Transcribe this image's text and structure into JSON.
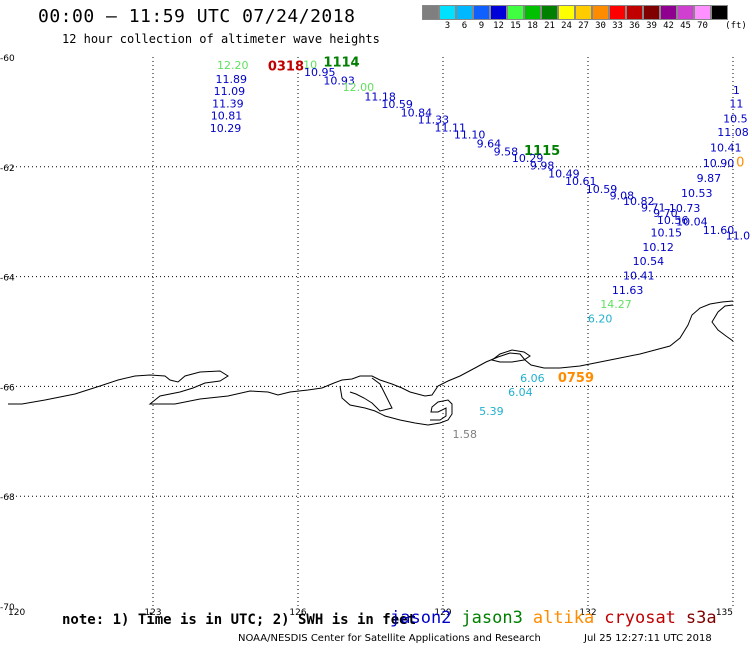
{
  "header": {
    "title": "00:00 – 11:59 UTC 07/24/2018",
    "subtitle": "12 hour collection of altimeter wave heights"
  },
  "legend": {
    "unit": "(ft)",
    "bins": [
      {
        "label": "",
        "color": "#7f7f7f"
      },
      {
        "label": "3",
        "color": "#00e0ff"
      },
      {
        "label": "6",
        "color": "#00b8ff"
      },
      {
        "label": "9",
        "color": "#1060ff"
      },
      {
        "label": "12",
        "color": "#0000d8"
      },
      {
        "label": "15",
        "color": "#40ff40"
      },
      {
        "label": "18",
        "color": "#00c000"
      },
      {
        "label": "21",
        "color": "#008000"
      },
      {
        "label": "24",
        "color": "#ffff00"
      },
      {
        "label": "27",
        "color": "#ffcc00"
      },
      {
        "label": "30",
        "color": "#ff8c00"
      },
      {
        "label": "33",
        "color": "#ff0000"
      },
      {
        "label": "36",
        "color": "#c00000"
      },
      {
        "label": "39",
        "color": "#800000"
      },
      {
        "label": "42",
        "color": "#900090"
      },
      {
        "label": "45",
        "color": "#d040d0"
      },
      {
        "label": "70",
        "color": "#ff90ff"
      },
      {
        "label": "",
        "color": "#000000"
      }
    ]
  },
  "axes": {
    "lon_ticks": [
      {
        "lon": 120,
        "label": "120"
      },
      {
        "lon": 123,
        "label": "123"
      },
      {
        "lon": 126,
        "label": "126"
      },
      {
        "lon": 129,
        "label": "129"
      },
      {
        "lon": 132,
        "label": "132"
      },
      {
        "lon": 135,
        "label": "135"
      }
    ],
    "lat_ticks": [
      {
        "lat": -60,
        "label": "-60"
      },
      {
        "lat": -62,
        "label": "-62"
      },
      {
        "lat": -64,
        "label": "-64"
      },
      {
        "lat": -66,
        "label": "-66"
      },
      {
        "lat": -68,
        "label": "-68"
      },
      {
        "lat": -70,
        "label": "-70"
      }
    ],
    "lon_range": [
      120,
      135
    ],
    "lat_range": [
      -60,
      -70
    ]
  },
  "colors": {
    "jason2": "#0000c8",
    "jason3": "#008000",
    "altika": "#ff8c00",
    "cryosat": "#c00000",
    "s3a": "#800000",
    "light_green": "#60e060",
    "cyan": "#20b0d0",
    "gray": "#808080"
  },
  "annotations": [
    {
      "text": "12.20",
      "lon": 124.65,
      "lat": -60.15,
      "color": "light_green"
    },
    {
      "text": "11.89",
      "lon": 124.62,
      "lat": -60.4,
      "color": "jason2"
    },
    {
      "text": "11.09",
      "lon": 124.58,
      "lat": -60.62,
      "color": "jason2"
    },
    {
      "text": "11.39",
      "lon": 124.55,
      "lat": -60.85,
      "color": "jason2"
    },
    {
      "text": "10.81",
      "lon": 124.52,
      "lat": -61.07,
      "color": "jason2"
    },
    {
      "text": "10.29",
      "lon": 124.5,
      "lat": -61.29,
      "color": "jason2"
    },
    {
      "text": "0318",
      "lon": 125.75,
      "lat": -60.17,
      "color": "cryosat",
      "bold": true,
      "size": 13
    },
    {
      "text": "10",
      "lon": 126.25,
      "lat": -60.14,
      "color": "light_green"
    },
    {
      "text": "1114",
      "lon": 126.9,
      "lat": -60.1,
      "color": "jason3",
      "bold": true,
      "size": 13
    },
    {
      "text": "10.95",
      "lon": 126.45,
      "lat": -60.27,
      "color": "jason2"
    },
    {
      "text": "10.93",
      "lon": 126.85,
      "lat": -60.43,
      "color": "jason2"
    },
    {
      "text": "12.00",
      "lon": 127.25,
      "lat": -60.55,
      "color": "light_green"
    },
    {
      "text": "11.18",
      "lon": 127.7,
      "lat": -60.72,
      "color": "jason2"
    },
    {
      "text": "10.59",
      "lon": 128.05,
      "lat": -60.86,
      "color": "jason2"
    },
    {
      "text": "10.84",
      "lon": 128.45,
      "lat": -61.01,
      "color": "jason2"
    },
    {
      "text": "11.33",
      "lon": 128.8,
      "lat": -61.14,
      "color": "jason2"
    },
    {
      "text": "11.11",
      "lon": 129.15,
      "lat": -61.28,
      "color": "jason2"
    },
    {
      "text": "11.10",
      "lon": 129.55,
      "lat": -61.41,
      "color": "jason2"
    },
    {
      "text": "9.64",
      "lon": 129.95,
      "lat": -61.58,
      "color": "jason2"
    },
    {
      "text": "9.58",
      "lon": 130.3,
      "lat": -61.72,
      "color": "jason2"
    },
    {
      "text": "1115",
      "lon": 131.05,
      "lat": -61.71,
      "color": "jason3",
      "bold": true,
      "size": 13
    },
    {
      "text": "10.29",
      "lon": 130.75,
      "lat": -61.84,
      "color": "jason2"
    },
    {
      "text": "9.98",
      "lon": 131.05,
      "lat": -61.98,
      "color": "jason2"
    },
    {
      "text": "10.49",
      "lon": 131.5,
      "lat": -62.12,
      "color": "jason2"
    },
    {
      "text": "10.61",
      "lon": 131.85,
      "lat": -62.26,
      "color": "jason2"
    },
    {
      "text": "10.59",
      "lon": 132.28,
      "lat": -62.4,
      "color": "jason2"
    },
    {
      "text": "9.08",
      "lon": 132.7,
      "lat": -62.52,
      "color": "jason2"
    },
    {
      "text": "10.82",
      "lon": 133.05,
      "lat": -62.62,
      "color": "jason2"
    },
    {
      "text": "9.71",
      "lon": 133.35,
      "lat": -62.74,
      "color": "jason2"
    },
    {
      "text": "9.70",
      "lon": 133.6,
      "lat": -62.84,
      "color": "jason2"
    },
    {
      "text": "10.56",
      "lon": 133.75,
      "lat": -62.97,
      "color": "jason2"
    },
    {
      "text": "10.15",
      "lon": 133.62,
      "lat": -63.2,
      "color": "jason2"
    },
    {
      "text": "10.12",
      "lon": 133.45,
      "lat": -63.46,
      "color": "jason2"
    },
    {
      "text": "10.54",
      "lon": 133.25,
      "lat": -63.72,
      "color": "jason2"
    },
    {
      "text": "10.41",
      "lon": 133.05,
      "lat": -63.98,
      "color": "jason2"
    },
    {
      "text": "11.63",
      "lon": 132.82,
      "lat": -64.24,
      "color": "jason2"
    },
    {
      "text": "14.27",
      "lon": 132.58,
      "lat": -64.5,
      "color": "light_green"
    },
    {
      "text": "6.20",
      "lon": 132.25,
      "lat": -64.76,
      "color": "cyan"
    },
    {
      "text": "10.73",
      "lon": 134.0,
      "lat": -62.75,
      "color": "jason2"
    },
    {
      "text": "10.53",
      "lon": 134.25,
      "lat": -62.48,
      "color": "jason2"
    },
    {
      "text": "9.87",
      "lon": 134.5,
      "lat": -62.2,
      "color": "jason2"
    },
    {
      "text": "10.90",
      "lon": 134.7,
      "lat": -61.93,
      "color": "jason2"
    },
    {
      "text": "10.41",
      "lon": 134.85,
      "lat": -61.65,
      "color": "jason2"
    },
    {
      "text": "11.08",
      "lon": 135.0,
      "lat": -61.37,
      "color": "jason2"
    },
    {
      "text": "10.5",
      "lon": 135.05,
      "lat": -61.12,
      "color": "jason2"
    },
    {
      "text": "11",
      "lon": 135.07,
      "lat": -60.85,
      "color": "jason2"
    },
    {
      "text": "1",
      "lon": 135.07,
      "lat": -60.6,
      "color": "jason2"
    },
    {
      "text": "0",
      "lon": 135.15,
      "lat": -61.92,
      "color": "altika",
      "size": 13
    },
    {
      "text": "10.04",
      "lon": 134.15,
      "lat": -63.0,
      "color": "jason2"
    },
    {
      "text": "11.60",
      "lon": 134.7,
      "lat": -63.15,
      "color": "jason2"
    },
    {
      "text": "11.0",
      "lon": 135.1,
      "lat": -63.25,
      "color": "jason2"
    },
    {
      "text": "6.06",
      "lon": 130.85,
      "lat": -65.85,
      "color": "cyan"
    },
    {
      "text": "0759",
      "lon": 131.75,
      "lat": -65.85,
      "color": "altika",
      "bold": true,
      "size": 13
    },
    {
      "text": "6.04",
      "lon": 130.6,
      "lat": -66.1,
      "color": "cyan"
    },
    {
      "text": "5.39",
      "lon": 130.0,
      "lat": -66.45,
      "color": "cyan"
    },
    {
      "text": "1.58",
      "lon": 129.45,
      "lat": -66.87,
      "color": "gray"
    }
  ],
  "footer": {
    "note": "note: 1) Time is in UTC; 2) SWH is in feet",
    "satellites": [
      {
        "name": "jason2",
        "color": "jason2"
      },
      {
        "name": "jason3",
        "color": "jason3"
      },
      {
        "name": "altika",
        "color": "altika"
      },
      {
        "name": "cryosat",
        "color": "cryosat"
      },
      {
        "name": "s3a",
        "color": "s3a"
      }
    ],
    "credit": "NOAA/NESDIS Center for Satellite Applications and Research",
    "timestamp": "Jul 25 12:27:11 UTC 2018"
  }
}
